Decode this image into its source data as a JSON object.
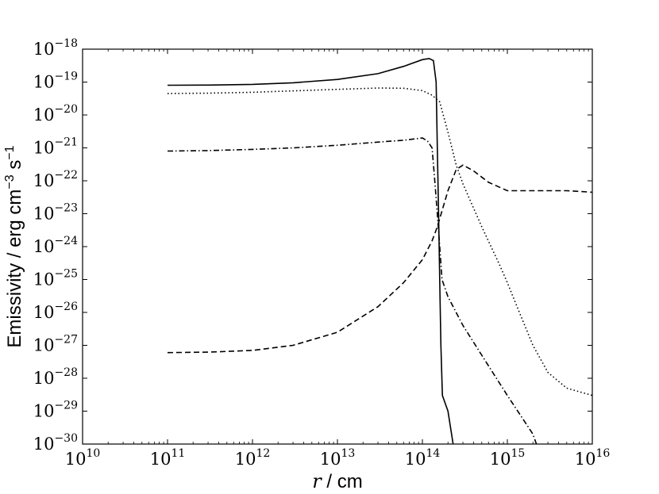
{
  "chart_data": {
    "type": "line",
    "title": "",
    "x_scale": "log",
    "y_scale": "log",
    "xlim": [
      10000000000.0,
      1e+16
    ],
    "ylim": [
      1e-30,
      1e-18
    ],
    "x_tick_exponents": [
      10,
      11,
      12,
      13,
      14,
      15,
      16
    ],
    "y_tick_exponents": [
      -18,
      -19,
      -20,
      -21,
      -22,
      -23,
      -24,
      -25,
      -26,
      -27,
      -28,
      -29,
      -30
    ],
    "tick_base": "10",
    "xlabel": {
      "var": "r",
      "rest": " / cm"
    },
    "ylabel": {
      "main": "Emissivity / erg cm",
      "exp1": "−3",
      "mid": " s",
      "exp2": "−1"
    },
    "grid": false,
    "legend": "none",
    "series": [
      {
        "style": "solid",
        "x": [
          100000000000.0,
          300000000000.0,
          1000000000000.0,
          3000000000000.0,
          10000000000000.0,
          30000000000000.0,
          60000000000000.0,
          100000000000000.0,
          120000000000000.0,
          135000000000000.0,
          145000000000000.0,
          150000000000000.0,
          155000000000000.0,
          160000000000000.0,
          165000000000000.0,
          172000000000000.0,
          200000000000000.0,
          230000000000000.0
        ],
        "y": [
          8e-20,
          8.1e-20,
          8.5e-20,
          9.5e-20,
          1.2e-19,
          1.8e-19,
          3e-19,
          4.8e-19,
          5.2e-19,
          4.5e-19,
          1e-19,
          1e-21,
          1e-23,
          1e-25,
          1e-27,
          3e-29,
          1e-29,
          1e-30
        ]
      },
      {
        "style": "dotted",
        "x": [
          100000000000.0,
          300000000000.0,
          1000000000000.0,
          3000000000000.0,
          10000000000000.0,
          30000000000000.0,
          60000000000000.0,
          100000000000000.0,
          130000000000000.0,
          160000000000000.0,
          200000000000000.0,
          250000000000000.0,
          300000000000000.0,
          500000000000000.0,
          800000000000000.0,
          1000000000000000.0,
          1300000000000000.0,
          2000000000000000.0,
          3000000000000000.0,
          5000000000000000.0,
          1e+16
        ],
        "y": [
          4.5e-20,
          4.6e-20,
          4.9e-20,
          5.4e-20,
          6e-20,
          6.6e-20,
          6.5e-20,
          5.5e-20,
          4e-20,
          2.5e-20,
          3e-21,
          3e-22,
          8e-23,
          4e-24,
          3e-25,
          8e-26,
          1.5e-26,
          1e-27,
          1.5e-28,
          5e-29,
          3e-29
        ]
      },
      {
        "style": "dashdot",
        "x": [
          100000000000.0,
          300000000000.0,
          1000000000000.0,
          3000000000000.0,
          10000000000000.0,
          30000000000000.0,
          60000000000000.0,
          100000000000000.0,
          115000000000000.0,
          130000000000000.0,
          140000000000000.0,
          150000000000000.0,
          160000000000000.0,
          170000000000000.0,
          200000000000000.0,
          300000000000000.0,
          500000000000000.0,
          1000000000000000.0,
          2000000000000000.0,
          2200000000000000.0
        ],
        "y": [
          8e-22,
          8.3e-22,
          9e-22,
          1e-21,
          1.2e-21,
          1.5e-21,
          1.7e-21,
          2e-21,
          1.6e-21,
          1e-21,
          1e-22,
          1e-23,
          1e-24,
          1e-25,
          3e-26,
          4e-27,
          5e-28,
          3e-29,
          2e-30,
          1e-30
        ]
      },
      {
        "style": "dashed",
        "x": [
          100000000000.0,
          300000000000.0,
          1000000000000.0,
          3000000000000.0,
          10000000000000.0,
          30000000000000.0,
          60000000000000.0,
          100000000000000.0,
          130000000000000.0,
          150000000000000.0,
          200000000000000.0,
          250000000000000.0,
          300000000000000.0,
          400000000000000.0,
          600000000000000.0,
          1000000000000000.0,
          2000000000000000.0,
          3000000000000000.0,
          5000000000000000.0,
          1e+16
        ],
        "y": [
          6e-28,
          6.2e-28,
          7e-28,
          1e-27,
          2.5e-27,
          1.5e-26,
          8e-26,
          4e-25,
          1.5e-24,
          4e-24,
          5e-23,
          2.2e-22,
          3e-22,
          2e-22,
          9e-23,
          5e-23,
          5e-23,
          5e-23,
          5e-23,
          4.5e-23
        ]
      }
    ]
  }
}
